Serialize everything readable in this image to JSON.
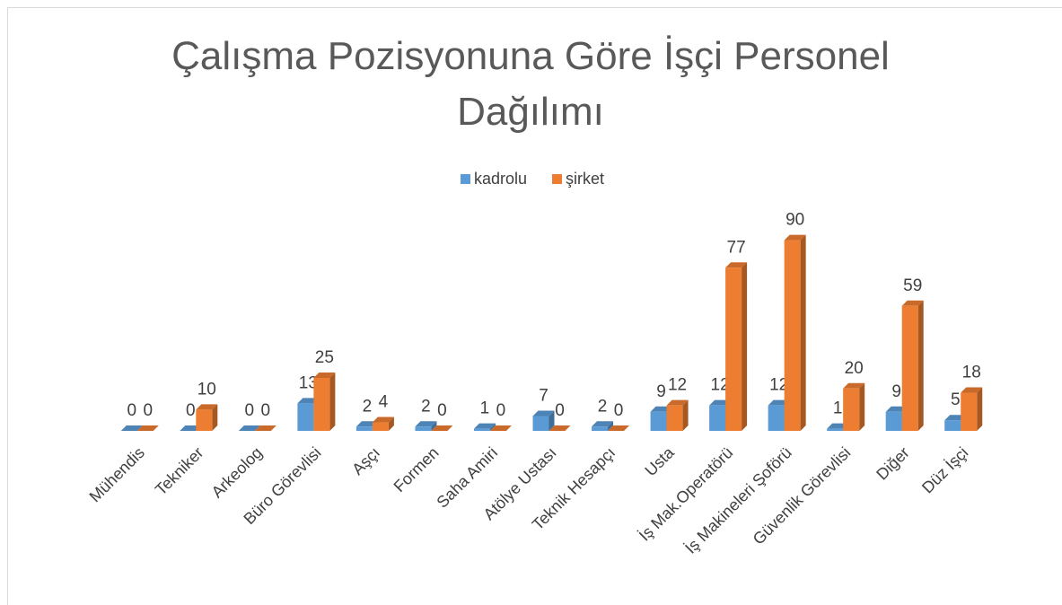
{
  "chart_data": {
    "type": "bar",
    "title": "Çalışma Pozisyonuna Göre İşçi Personel Dağılımı",
    "categories": [
      "Mühendis",
      "Tekniker",
      "Arkeolog",
      "Büro Görevlisi",
      "Aşçı",
      "Formen",
      "Saha Amiri",
      "Atölye Ustası",
      "Teknik Hesapçı",
      "Usta",
      "İş Mak.Operatörü",
      "İş Makineleri Şoförü",
      "Güvenlik Görevlisi",
      "Diğer",
      "Düz İşçi"
    ],
    "series": [
      {
        "name": "kadrolu",
        "color": "#5b9bd5",
        "values": [
          0,
          0,
          0,
          13,
          2,
          2,
          1,
          7,
          2,
          9,
          12,
          12,
          1,
          9,
          5
        ]
      },
      {
        "name": "şirket",
        "color": "#ed7d31",
        "values": [
          0,
          10,
          0,
          25,
          4,
          0,
          0,
          0,
          0,
          12,
          77,
          90,
          20,
          59,
          18
        ]
      }
    ],
    "ylim": [
      0,
      100
    ],
    "legend": "top"
  }
}
